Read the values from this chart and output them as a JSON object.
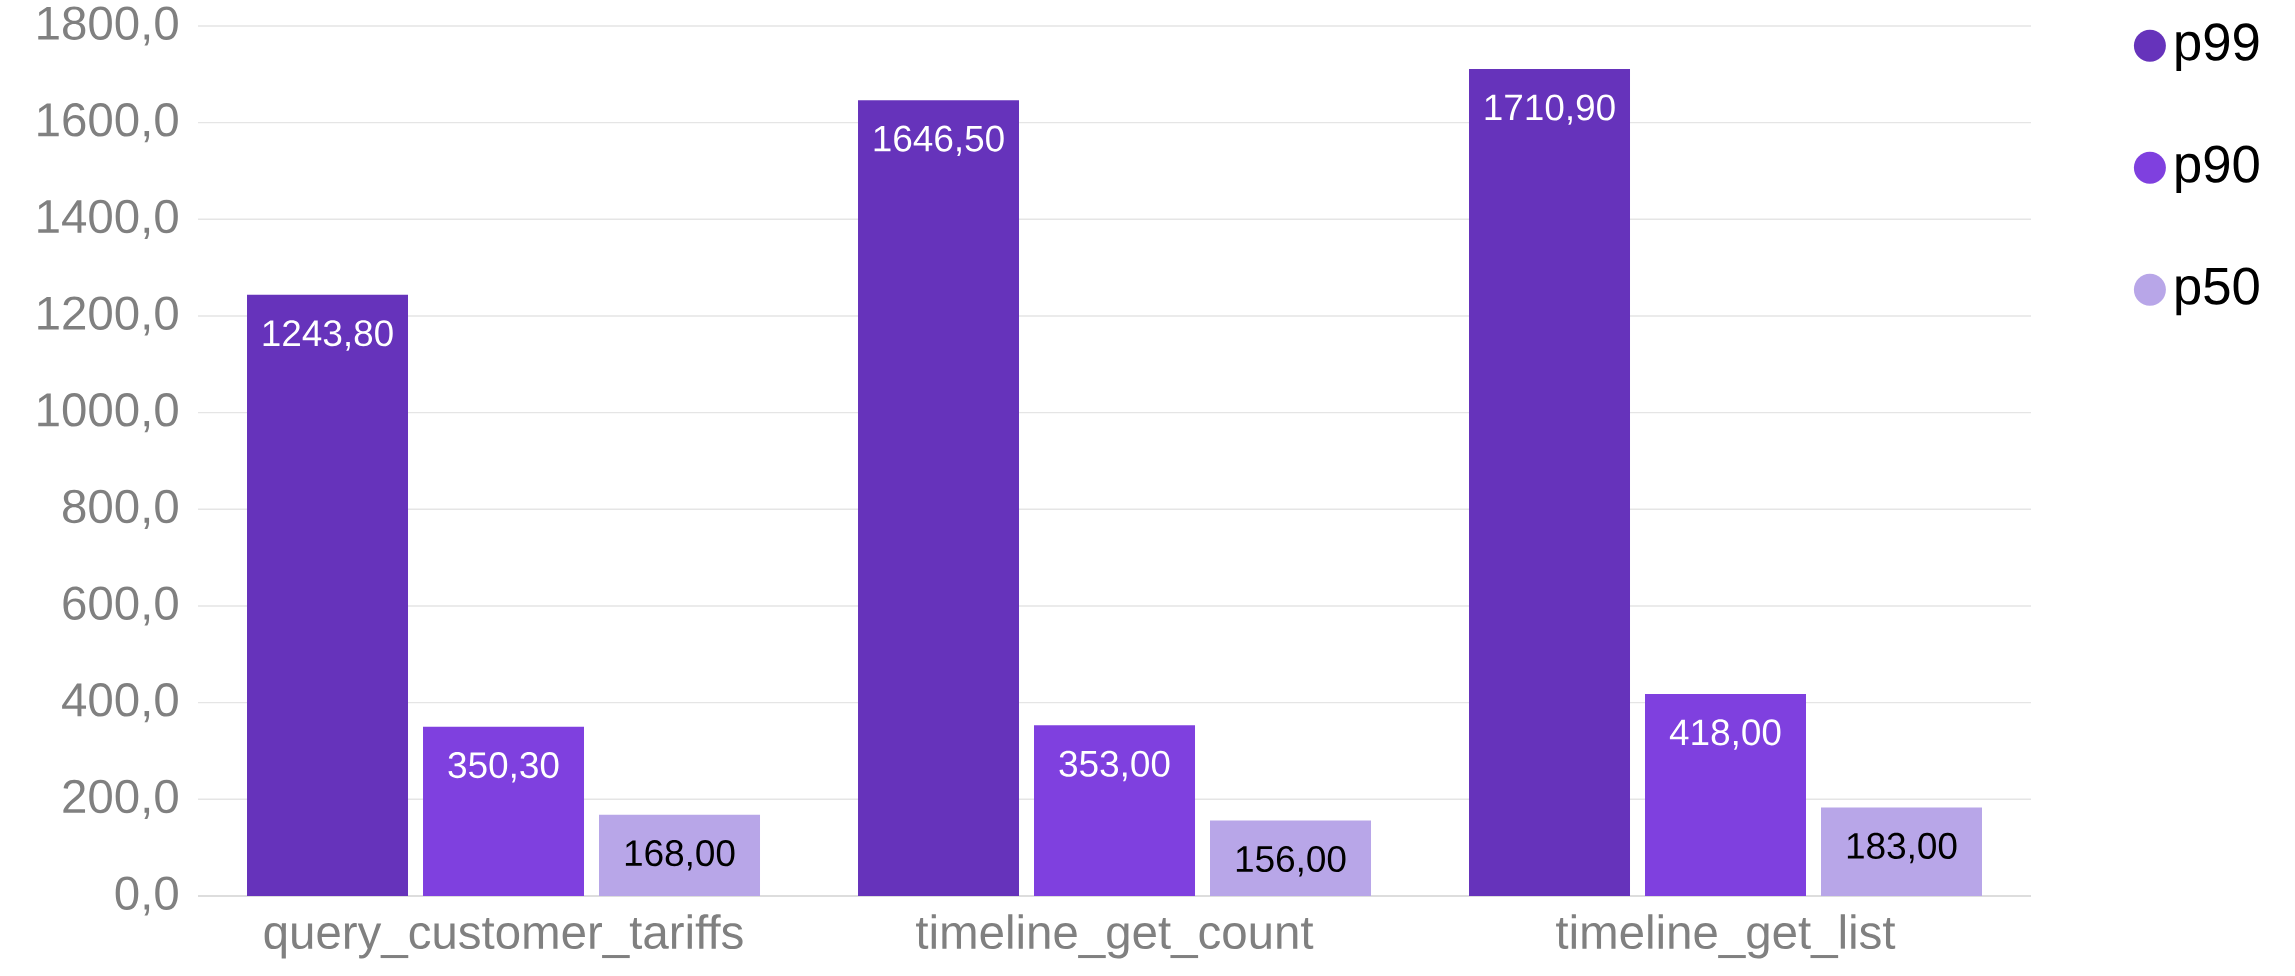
{
  "chart_data": {
    "type": "bar",
    "categories": [
      "query_customer_tariffs",
      "timeline_get_count",
      "timeline_get_list"
    ],
    "series": [
      {
        "name": "p99",
        "color": "#6633bb",
        "values": [
          1243.8,
          1646.5,
          1710.9
        ],
        "value_labels": [
          "1243,80",
          "1646,50",
          "1710,90"
        ]
      },
      {
        "name": "p90",
        "color": "#7f40df",
        "values": [
          350.3,
          353.0,
          418.0
        ],
        "value_labels": [
          "350,30",
          "353,00",
          "418,00"
        ]
      },
      {
        "name": "p50",
        "color": "#b8a6e8",
        "values": [
          168.0,
          156.0,
          183.0
        ],
        "value_labels": [
          "168,00",
          "156,00",
          "183,00"
        ]
      }
    ],
    "ylim": [
      0,
      1800
    ],
    "yticks": [
      {
        "value": 0,
        "label": "0,0"
      },
      {
        "value": 200,
        "label": "200,0"
      },
      {
        "value": 400,
        "label": "400,0"
      },
      {
        "value": 600,
        "label": "600,0"
      },
      {
        "value": 800,
        "label": "800,0"
      },
      {
        "value": 1000,
        "label": "1000,0"
      },
      {
        "value": 1200,
        "label": "1200,0"
      },
      {
        "value": 1400,
        "label": "1400,0"
      },
      {
        "value": 1600,
        "label": "1600,0"
      },
      {
        "value": 1800,
        "label": "1800,0"
      }
    ],
    "grid": "y",
    "legend": "top right"
  }
}
